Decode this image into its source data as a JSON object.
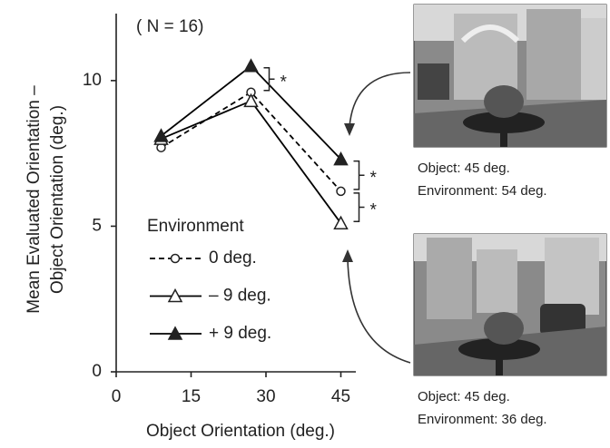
{
  "chart_data": {
    "type": "line",
    "title": "( N = 16)",
    "y_label": [
      "Mean Evaluated Orientation –",
      "Object Orientation (deg.)"
    ],
    "x_label": "Object Orientation (deg.)",
    "legend_title": "Environment",
    "x": [
      9,
      27,
      45
    ],
    "series": [
      {
        "name": "0 deg.",
        "color": "#000000",
        "marker": "circle-open",
        "dashed": true,
        "values": [
          7.7,
          9.6,
          6.2
        ]
      },
      {
        "name": "– 9  deg.",
        "color": "#000000",
        "marker": "triangle-open",
        "dashed": false,
        "values": [
          8.0,
          9.3,
          5.1
        ]
      },
      {
        "name": "+ 9  deg.",
        "color": "#000000",
        "marker": "triangle-filled",
        "dashed": false,
        "values": [
          8.1,
          10.5,
          7.3
        ]
      }
    ],
    "xlim": [
      0,
      48
    ],
    "ylim": [
      0,
      12.3
    ],
    "xticks": [
      0,
      15,
      30,
      45
    ],
    "yticks": [
      0,
      5,
      10
    ],
    "significance": [
      "*",
      "*",
      "*"
    ],
    "panels": [
      {
        "object": "Object: 45 deg.",
        "environment": "Environment: 54 deg."
      },
      {
        "object": "Object: 45 deg.",
        "environment": "Environment: 36 deg."
      }
    ]
  }
}
